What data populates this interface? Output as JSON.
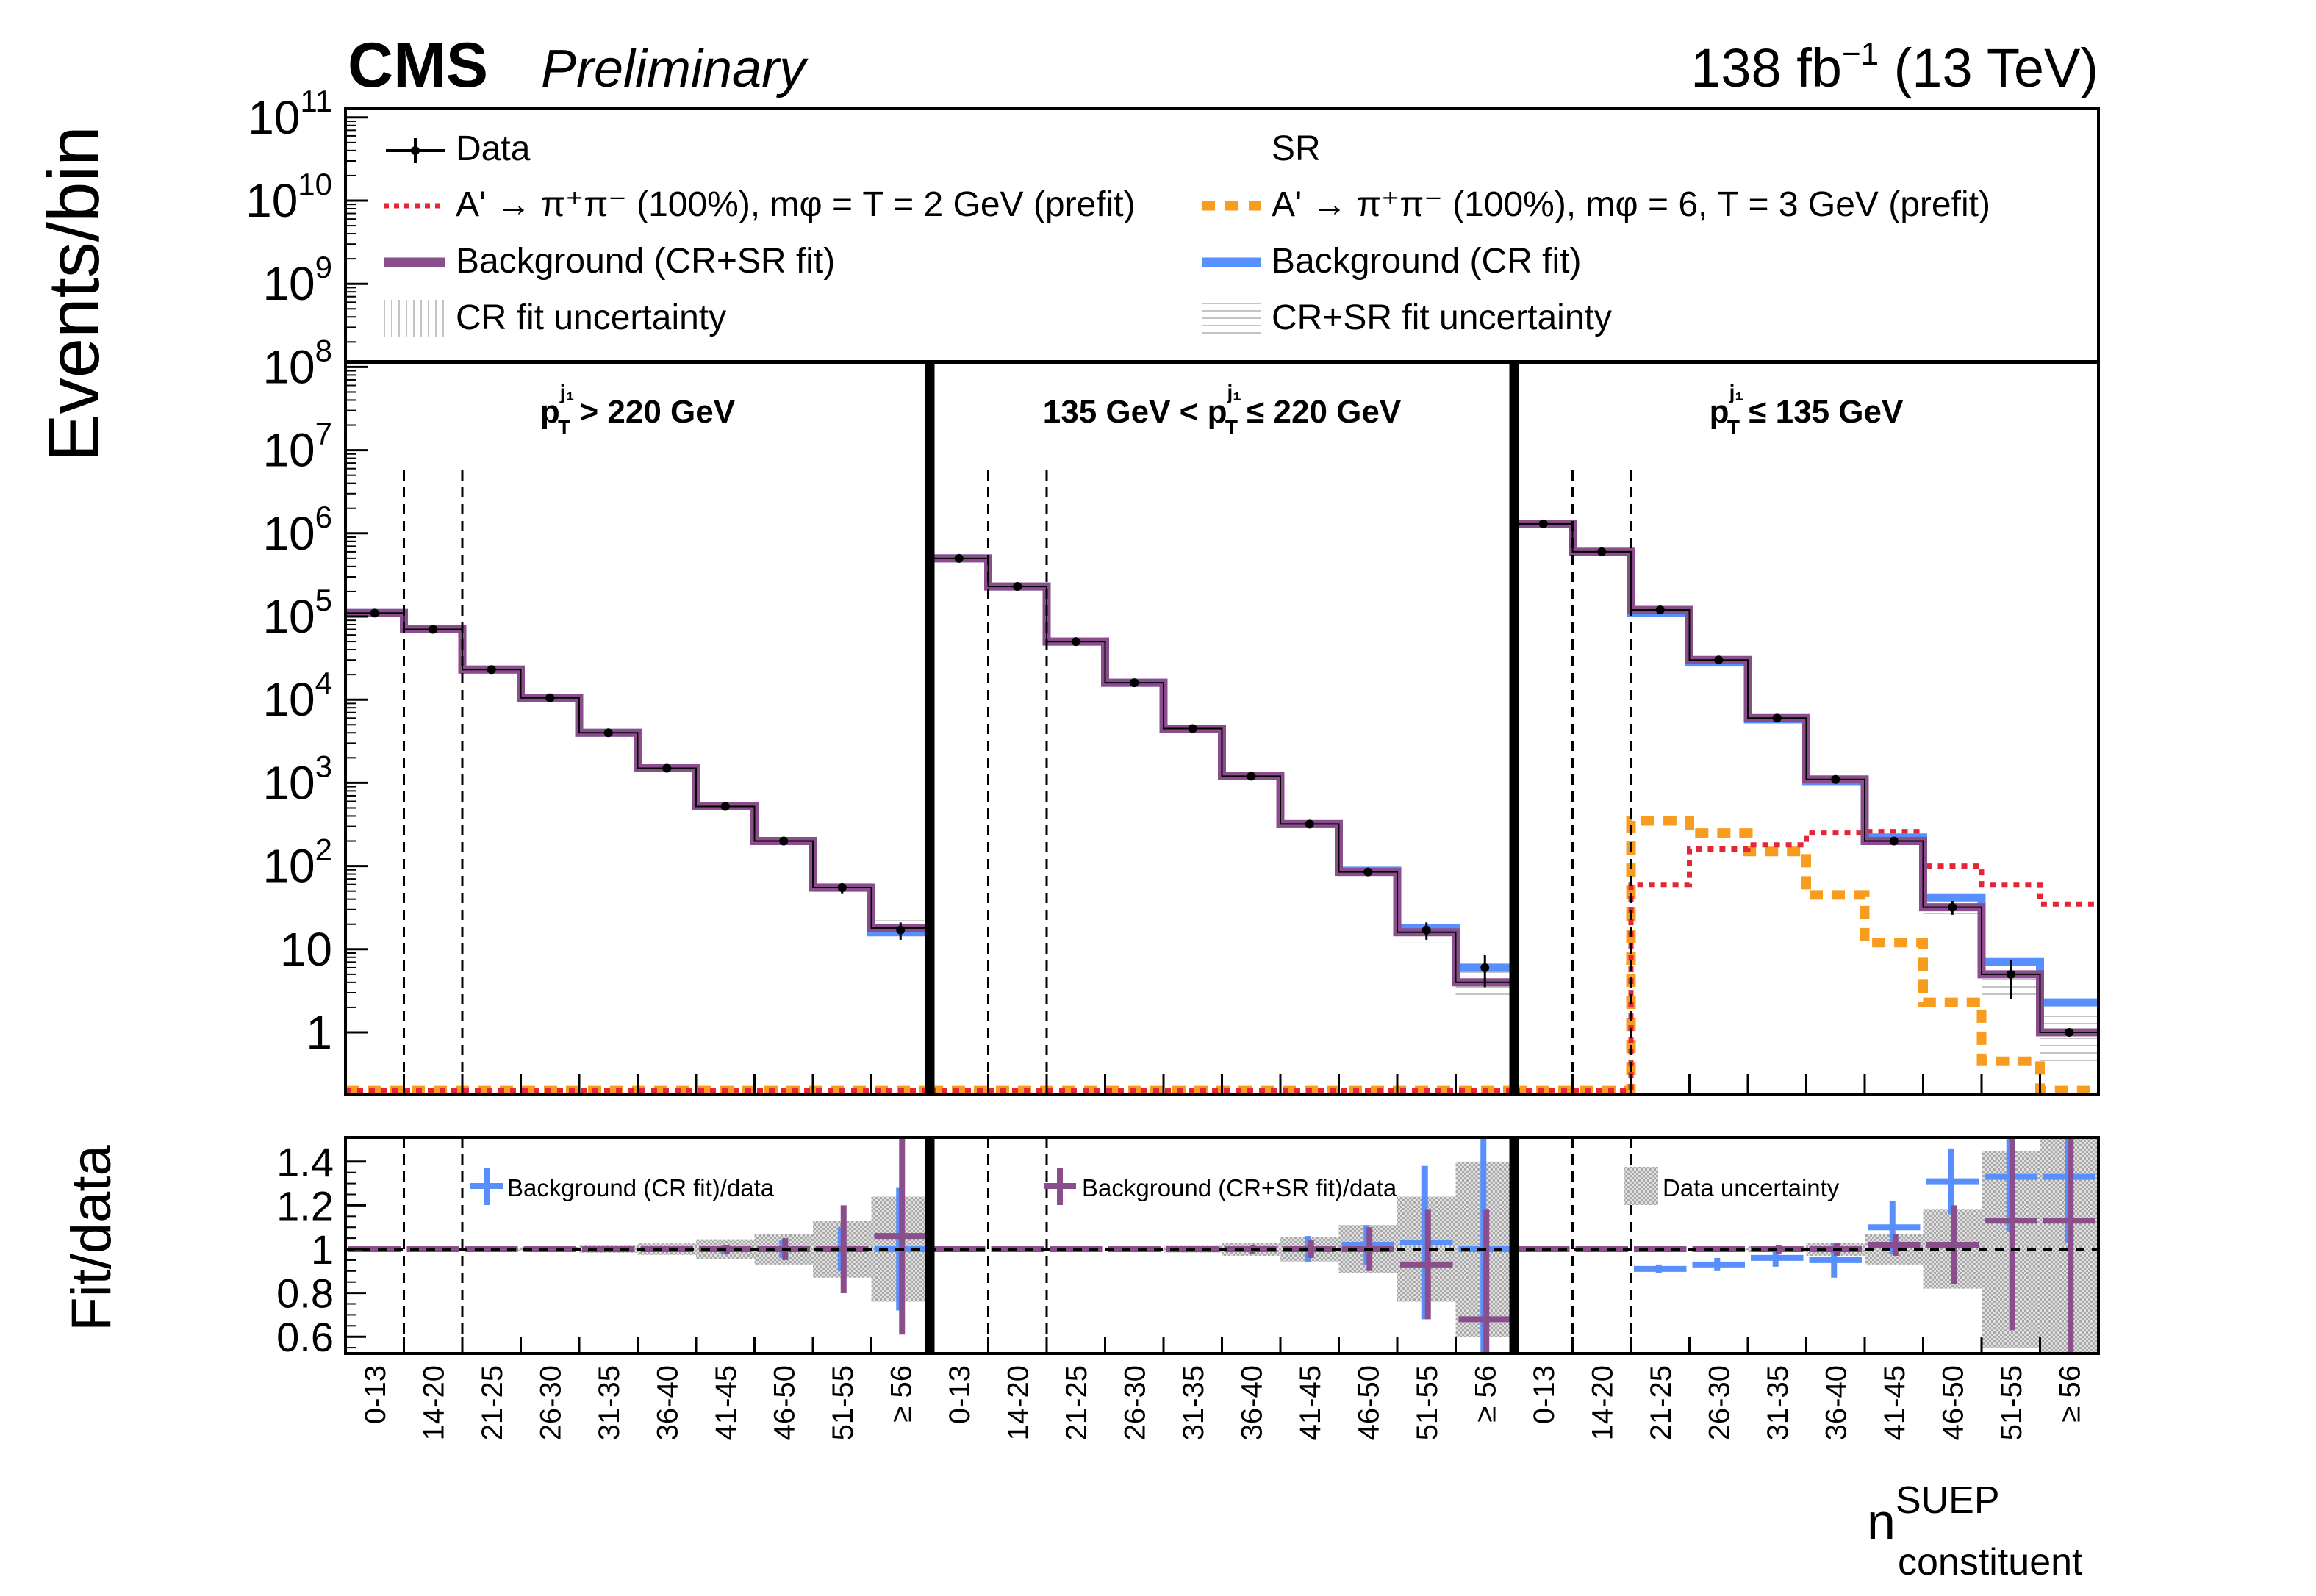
{
  "header": {
    "experiment": "CMS",
    "status": "Preliminary",
    "lumi_value": "138 fb",
    "lumi_exp": "−1",
    "energy": " (13 TeV)"
  },
  "legend": {
    "data": "Data",
    "sr": "SR",
    "sig1": "A' → π⁺π⁻ (100%), mφ = T = 2 GeV (prefit)",
    "sig2": "A' → π⁺π⁻ (100%), mφ = 6, T = 3 GeV (prefit)",
    "bkg_crsr": "Background (CR+SR fit)",
    "bkg_cr": "Background (CR fit)",
    "unc_cr": "CR fit uncertainty",
    "unc_crsr": "CR+SR fit uncertainty"
  },
  "ratio_legend": {
    "cr": "Background (CR fit)/data",
    "crsr": "Background (CR+SR fit)/data",
    "data_unc": "Data uncertainty"
  },
  "colors": {
    "bkg_crsr": "#8b4e8c",
    "bkg_cr": "#5790fc",
    "sig1": "#e42536",
    "sig2": "#f89c20",
    "data": "#000000",
    "unc": "#bbbbbb"
  },
  "chart_data": {
    "type": "histogram",
    "main": {
      "ylabel": "Events/bin",
      "yscale": "log",
      "ylim": [
        0.2,
        100000000000
      ],
      "yticks": [
        "1",
        "10",
        "10²",
        "10³",
        "10⁴",
        "10⁵",
        "10⁶",
        "10⁷",
        "10⁸",
        "10⁹",
        "10¹⁰",
        "10¹¹"
      ]
    },
    "ratio": {
      "ylabel": "Fit/data",
      "ylim": [
        0.5,
        1.5
      ],
      "yticks": [
        "0.6",
        "0.8",
        "1",
        "1.2",
        "1.4"
      ]
    },
    "xlabel_main": "n",
    "xlabel_sup": "SUEP",
    "xlabel_sub": "constituent",
    "bin_labels": [
      "0-13",
      "14-20",
      "21-25",
      "26-30",
      "31-35",
      "36-40",
      "41-45",
      "46-50",
      "51-55",
      "≥ 56"
    ],
    "regions": [
      {
        "label_pre": "p",
        "label_sup": "j₁",
        "label_sub": "T",
        "label_post": " > 220 GeV",
        "data": [
          110000,
          70000,
          23000,
          10500,
          4000,
          1500,
          520,
          200,
          55,
          17
        ],
        "data_err": [
          0,
          0,
          0,
          0,
          0,
          0,
          0,
          0,
          8,
          4
        ],
        "bkg_cr": [
          110000,
          70000,
          23000,
          10500,
          4000,
          1500,
          520,
          200,
          55,
          16
        ],
        "bkg_crsr": [
          110000,
          70000,
          23000,
          10500,
          4000,
          1500,
          520,
          200,
          55,
          18
        ],
        "sig1": [
          0.2,
          0.2,
          0.2,
          0.2,
          0.2,
          0.2,
          0.2,
          0.2,
          0.2,
          0.2
        ],
        "sig2": [
          0.2,
          0.2,
          0.2,
          0.2,
          0.2,
          0.2,
          0.2,
          0.2,
          0.2,
          0.2
        ],
        "ratio_cr": [
          1.0,
          1.0,
          1.0,
          1.0,
          1.0,
          1.0,
          1.0,
          1.0,
          1.0,
          1.0
        ],
        "ratio_cr_err": [
          0.005,
          0.005,
          0.005,
          0.005,
          0.005,
          0.01,
          0.02,
          0.04,
          0.1,
          0.28
        ],
        "ratio_crsr": [
          1.0,
          1.0,
          1.0,
          1.0,
          1.0,
          1.0,
          1.0,
          1.0,
          1.0,
          1.06
        ],
        "ratio_crsr_err": [
          0.005,
          0.005,
          0.005,
          0.005,
          0.005,
          0.01,
          0.02,
          0.05,
          0.2,
          0.45
        ],
        "data_unc": [
          0.003,
          0.004,
          0.007,
          0.01,
          0.016,
          0.026,
          0.045,
          0.07,
          0.13,
          0.24
        ]
      },
      {
        "label_pre": "135 GeV < p",
        "label_sup": "j₁",
        "label_sub": "T",
        "label_post": " ≤ 220 GeV",
        "data": [
          500000,
          230000,
          50000,
          16000,
          4500,
          1200,
          320,
          85,
          17,
          6
        ],
        "data_err": [
          0,
          0,
          0,
          0,
          0,
          0,
          0,
          0,
          4,
          2.5
        ],
        "bkg_cr": [
          500000,
          230000,
          50000,
          16000,
          4500,
          1200,
          320,
          88,
          18,
          6
        ],
        "bkg_crsr": [
          500000,
          230000,
          50000,
          16000,
          4500,
          1200,
          320,
          85,
          16,
          4
        ],
        "sig1": [
          0.2,
          0.2,
          0.2,
          0.2,
          0.2,
          0.2,
          0.2,
          0.2,
          0.2,
          0.2
        ],
        "sig2": [
          0.2,
          0.2,
          0.2,
          0.2,
          0.2,
          0.2,
          0.2,
          0.2,
          0.2,
          0.2
        ],
        "ratio_cr": [
          1.0,
          1.0,
          1.0,
          1.0,
          1.0,
          1.0,
          1.0,
          1.02,
          1.03,
          1.0
        ],
        "ratio_cr_err": [
          0.003,
          0.003,
          0.005,
          0.005,
          0.005,
          0.01,
          0.06,
          0.09,
          0.35,
          0.6
        ],
        "ratio_crsr": [
          1.0,
          1.0,
          1.0,
          1.0,
          1.0,
          1.0,
          1.0,
          1.0,
          0.93,
          0.68
        ],
        "ratio_crsr_err": [
          0.003,
          0.003,
          0.005,
          0.005,
          0.005,
          0.02,
          0.04,
          0.1,
          0.25,
          0.5
        ],
        "data_unc": [
          0.002,
          0.003,
          0.005,
          0.008,
          0.015,
          0.03,
          0.056,
          0.11,
          0.24,
          0.4
        ]
      },
      {
        "label_pre": "p",
        "label_sup": "j₁",
        "label_sub": "T",
        "label_post": " ≤ 135 GeV",
        "data": [
          1300000,
          600000,
          120000,
          30000,
          6000,
          1100,
          200,
          32,
          5,
          1
        ],
        "data_err": [
          0,
          0,
          0,
          0,
          0,
          0,
          0,
          6,
          2.5,
          0
        ],
        "bkg_cr": [
          1300000,
          600000,
          110000,
          28000,
          5800,
          1050,
          220,
          42,
          7,
          2.3
        ],
        "bkg_crsr": [
          1300000,
          600000,
          120000,
          30000,
          6000,
          1100,
          200,
          32,
          5,
          1
        ],
        "sig1": [
          0.2,
          0.2,
          60,
          160,
          180,
          250,
          260,
          100,
          60,
          35
        ],
        "sig2": [
          0.2,
          0.2,
          350,
          250,
          150,
          45,
          12,
          2.3,
          0.45,
          0.2
        ],
        "ratio_cr": [
          1.0,
          1.0,
          0.91,
          0.93,
          0.96,
          0.95,
          1.1,
          1.31,
          1.33,
          1.33
        ],
        "ratio_cr_err": [
          0.004,
          0.004,
          0.02,
          0.03,
          0.04,
          0.08,
          0.12,
          0.15,
          0.25,
          0.3
        ],
        "ratio_crsr": [
          1.0,
          1.0,
          1.0,
          1.0,
          1.0,
          1.0,
          1.02,
          1.02,
          1.13,
          1.13
        ],
        "ratio_crsr_err": [
          0.004,
          0.004,
          0.006,
          0.01,
          0.02,
          0.03,
          0.05,
          0.18,
          0.5,
          0.6
        ],
        "data_unc": [
          0.001,
          0.002,
          0.003,
          0.006,
          0.013,
          0.03,
          0.07,
          0.18,
          0.45,
          0.6
        ]
      }
    ]
  }
}
